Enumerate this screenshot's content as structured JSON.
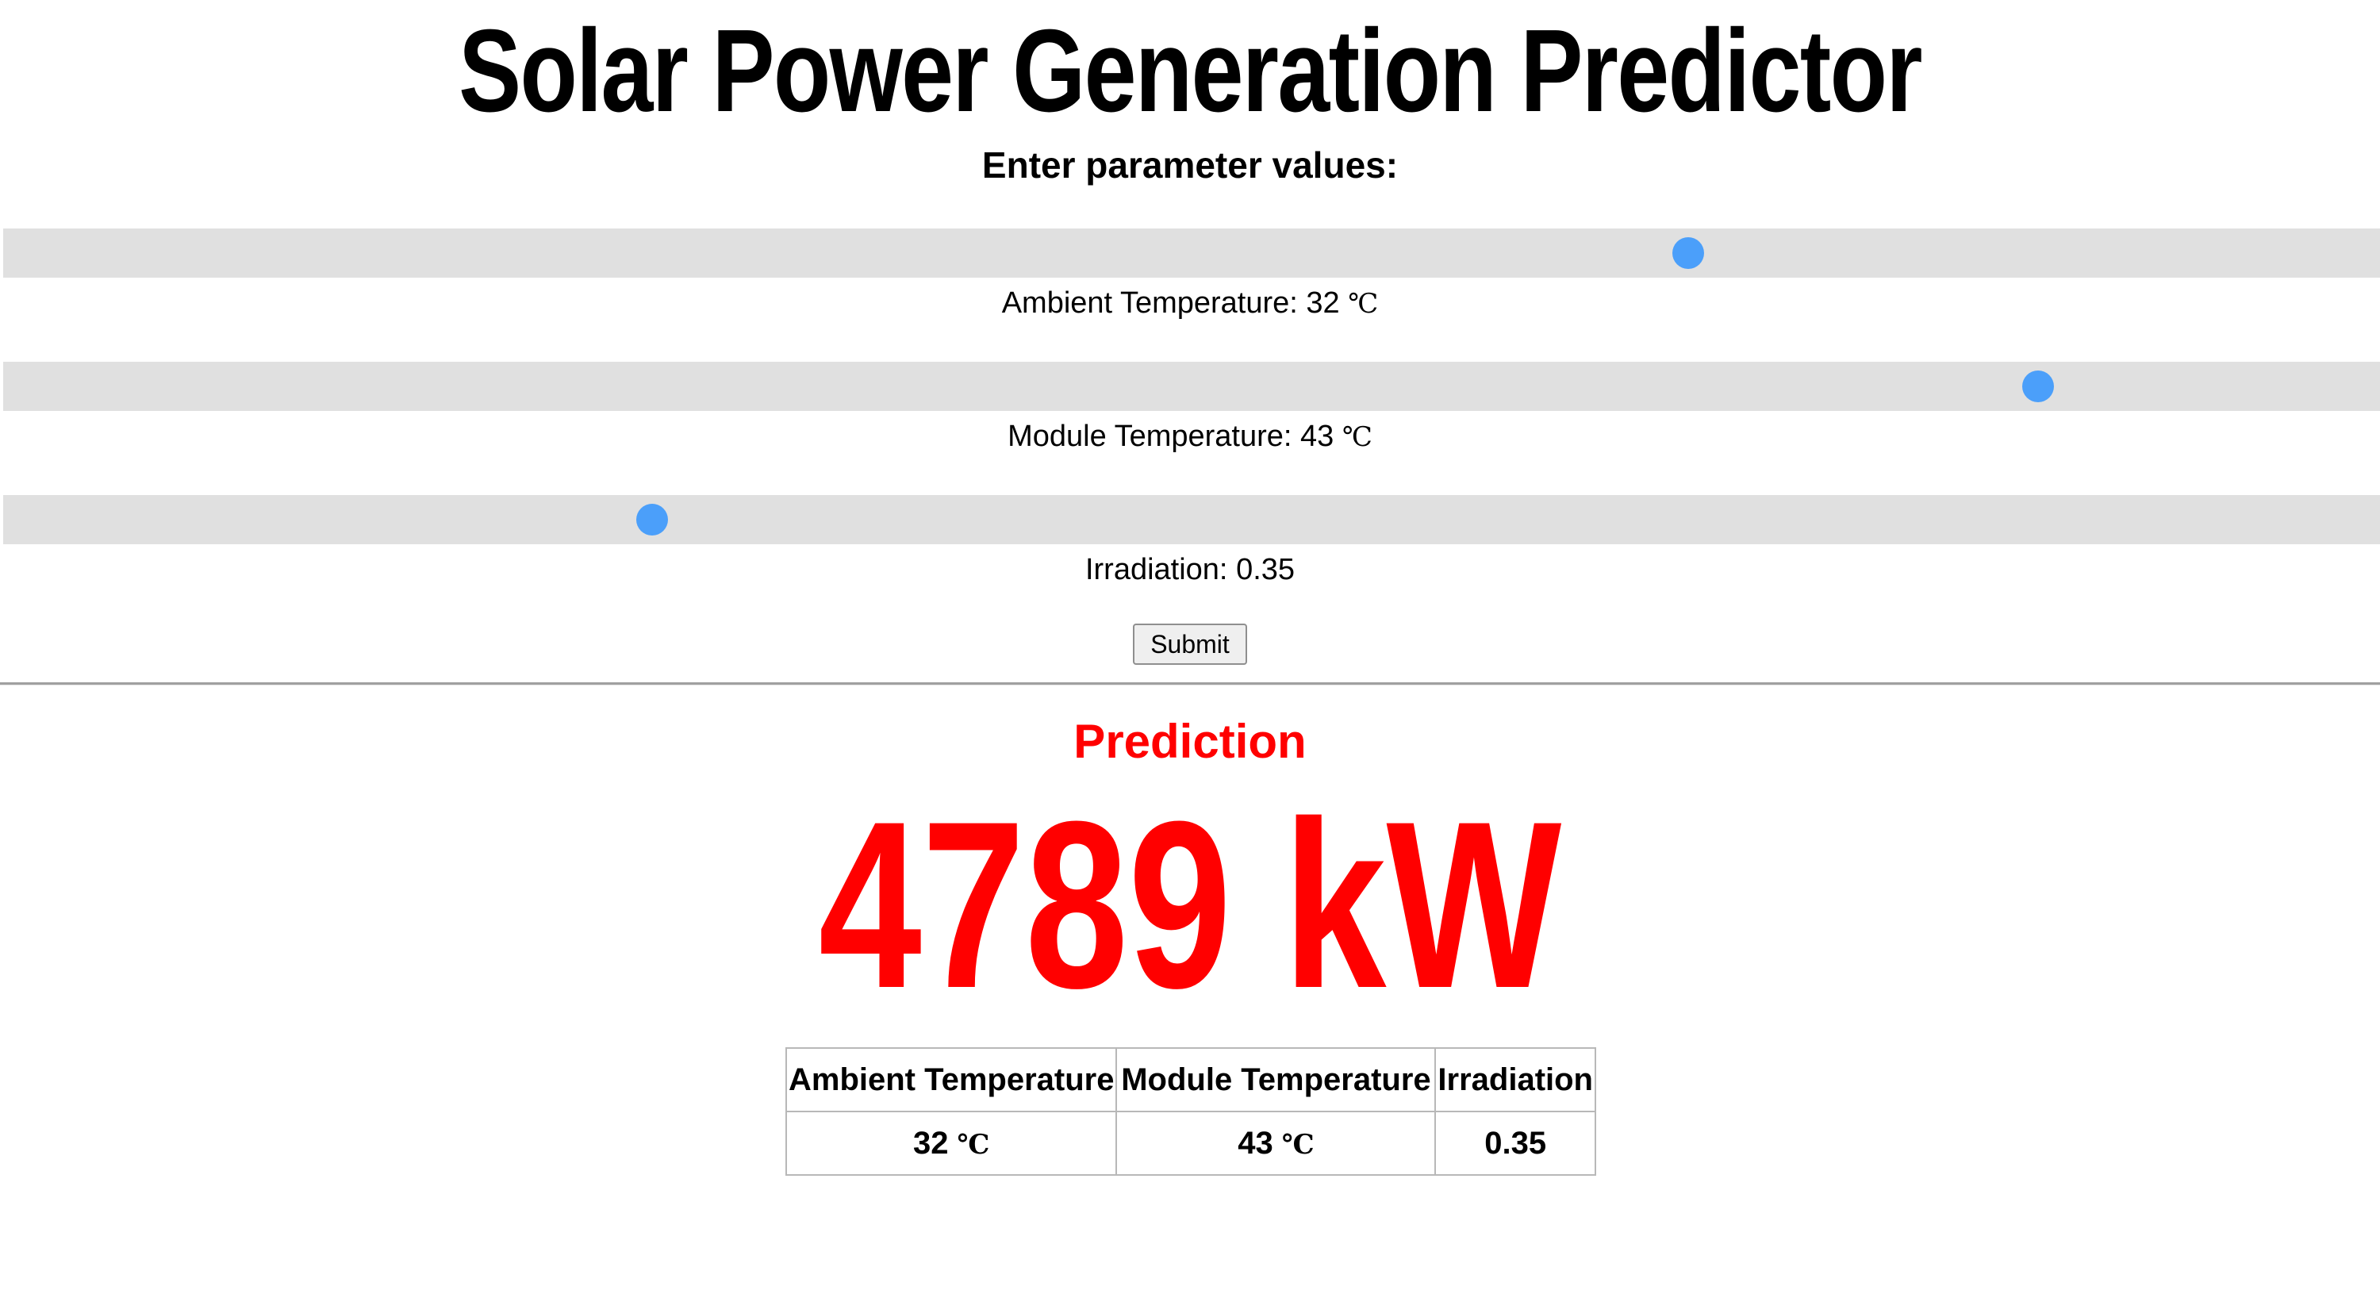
{
  "header": {
    "title": "Solar Power Generation Predictor",
    "subtitle": "Enter parameter values:"
  },
  "sliders": [
    {
      "name": "ambient-temperature",
      "label": "Ambient Temperature:",
      "value": "32",
      "unit": "℃",
      "fraction": 0.709
    },
    {
      "name": "module-temperature",
      "label": "Module Temperature:",
      "value": "43",
      "unit": "℃",
      "fraction": 0.856
    },
    {
      "name": "irradiation",
      "label": "Irradiation:",
      "value": "0.35",
      "unit": "",
      "fraction": 0.273
    }
  ],
  "form": {
    "submit_label": "Submit"
  },
  "prediction": {
    "heading": "Prediction",
    "value": "4789 kW"
  },
  "table": {
    "headers": [
      "Ambient Temperature",
      "Module Temperature",
      "Irradiation"
    ],
    "row": {
      "ambient": "32",
      "ambient_unit": "℃",
      "module": "43",
      "module_unit": "℃",
      "irradiation": "0.35"
    }
  },
  "colors": {
    "accent": "#4b9ffa",
    "prediction": "#ff0000",
    "track": "#e0e0e0"
  }
}
